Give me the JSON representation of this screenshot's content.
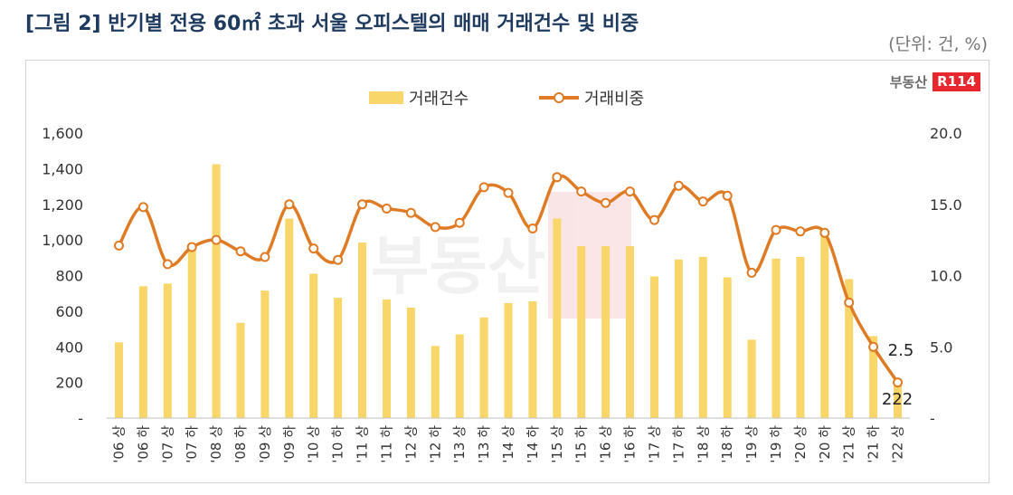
{
  "header": {
    "title": "[그림 2] 반기별 전용 60㎡ 초과 서울 오피스텔의 매매 거래건수 및 비중",
    "unit": "(단위: 건, %)"
  },
  "logo": {
    "text": "부동산",
    "badge": "R114"
  },
  "chart_data": {
    "type": "bar",
    "categories": [
      "'06 상",
      "'06 하",
      "'07 상",
      "'07 하",
      "'08 상",
      "'08 하",
      "'09 상",
      "'09 하",
      "'10 상",
      "'10 하",
      "'11 상",
      "'11 하",
      "'12 상",
      "'12 하",
      "'13 상",
      "'13 하",
      "'14 상",
      "'14 하",
      "'15 상",
      "'15 하",
      "'16 상",
      "'16 하",
      "'17 상",
      "'17 하",
      "'18 상",
      "'18 하",
      "'19 상",
      "'19 하",
      "'20 상",
      "'20 하",
      "'21 상",
      "'21 하",
      "'22 상"
    ],
    "series": [
      {
        "name": "거래건수",
        "type": "bar",
        "axis": "left",
        "color": "#f9d66a",
        "values": [
          425,
          740,
          755,
          965,
          1425,
          535,
          715,
          1120,
          810,
          675,
          985,
          665,
          620,
          405,
          470,
          565,
          645,
          655,
          1120,
          965,
          965,
          965,
          795,
          890,
          905,
          790,
          440,
          895,
          905,
          1020,
          780,
          460,
          222
        ]
      },
      {
        "name": "거래비중",
        "type": "line",
        "axis": "right",
        "color": "#e07b25",
        "values": [
          12.1,
          14.8,
          10.8,
          12.0,
          12.5,
          11.7,
          11.3,
          15.0,
          11.9,
          11.1,
          15.0,
          14.7,
          14.4,
          13.4,
          13.7,
          16.2,
          15.8,
          13.3,
          16.9,
          15.9,
          15.1,
          15.9,
          13.9,
          16.3,
          15.2,
          15.6,
          10.2,
          13.2,
          13.1,
          13.0,
          8.1,
          5.0,
          2.5
        ]
      }
    ],
    "y_left": {
      "min": 0,
      "max": 1600,
      "ticks": [
        "-",
        "200",
        "400",
        "600",
        "800",
        "1,000",
        "1,200",
        "1,400",
        "1,600"
      ]
    },
    "y_right": {
      "min": 0,
      "max": 20,
      "ticks": [
        "-",
        "5.0",
        "10.0",
        "15.0",
        "20.0"
      ]
    },
    "data_labels": {
      "last_bar": "222",
      "last_point": "2.5"
    },
    "legend": "top-center",
    "grid": false
  }
}
